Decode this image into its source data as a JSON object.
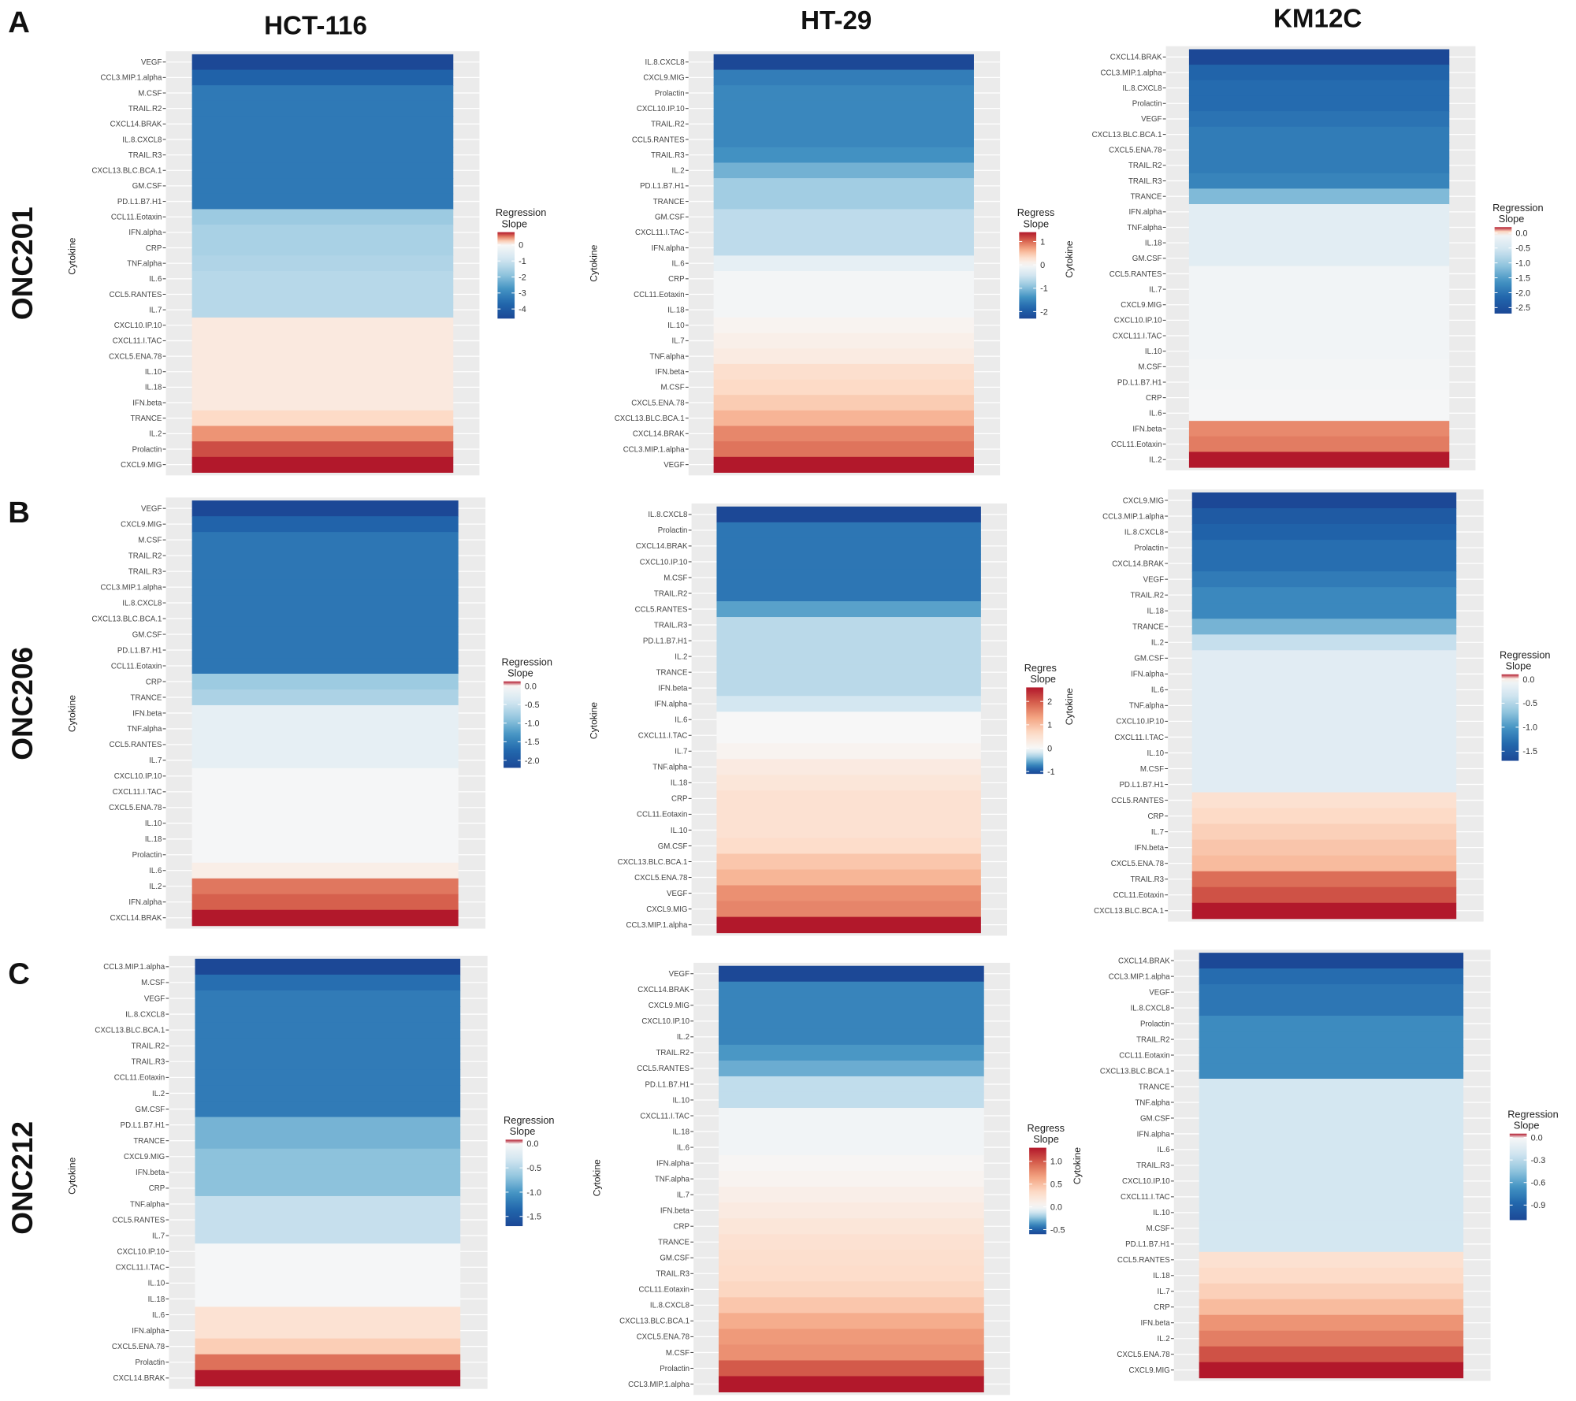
{
  "columns": [
    "HCT-116",
    "HT-29",
    "KM12C"
  ],
  "rows": [
    {
      "letter": "A",
      "drug": "ONC201"
    },
    {
      "letter": "B",
      "drug": "ONC206"
    },
    {
      "letter": "C",
      "drug": "ONC212"
    }
  ],
  "colors": {
    "neg": "#2166ac",
    "zero": "#f7f7f7",
    "pos": "#b2182b",
    "panel_bg": "#ebebeb"
  },
  "chart_data": [
    {
      "type": "heatmap",
      "row": "A",
      "cell_line": "HCT-116",
      "drug": "ONC201",
      "ylabel": "Cytokine",
      "legend_title": "Regression Slope",
      "legend_ticks": [
        0,
        -1,
        -2,
        -3,
        -4
      ],
      "legend_tick_labels": [
        "0",
        "-1",
        "-2",
        "-3",
        "-4"
      ],
      "limits": [
        -4.6,
        0.8
      ],
      "cytokines": [
        "VEGF",
        "CCL3.MIP.1.alpha",
        "M.CSF",
        "TRAIL.R2",
        "CXCL14.BRAK",
        "IL.8.CXCL8",
        "TRAIL.R3",
        "CXCL13.BLC.BCA.1",
        "GM.CSF",
        "PD.L1.B7.H1",
        "CCL11.Eotaxin",
        "IFN.alpha",
        "CRP",
        "TNF.alpha",
        "IL.6",
        "CCL5.RANTES",
        "IL.7",
        "CXCL10.IP.10",
        "CXCL11.I.TAC",
        "CXCL5.ENA.78",
        "IL.10",
        "IL.18",
        "IFN.beta",
        "TRANCE",
        "IL.2",
        "Prolactin",
        "CXCL9.MIG"
      ],
      "values": [
        -4.6,
        -3.8,
        -3.3,
        -3.3,
        -3.3,
        -3.3,
        -3.3,
        -3.3,
        -3.3,
        -3.3,
        -1.7,
        -1.5,
        -1.5,
        -1.4,
        -1.3,
        -1.3,
        -1.3,
        0.1,
        0.1,
        0.1,
        0.1,
        0.1,
        0.1,
        0.2,
        0.45,
        0.65,
        0.8
      ]
    },
    {
      "type": "heatmap",
      "row": "A",
      "cell_line": "HT-29",
      "drug": "ONC201",
      "ylabel": "Cytokine",
      "legend_title": "Regress Slope",
      "legend_ticks": [
        1,
        0,
        -1,
        -2
      ],
      "legend_tick_labels": [
        "1",
        "0",
        "-1",
        "-2"
      ],
      "limits": [
        -2.3,
        1.4
      ],
      "cytokines": [
        "IL.8.CXCL8",
        "CXCL9.MIG",
        "Prolactin",
        "CXCL10.IP.10",
        "TRAIL.R2",
        "CCL5.RANTES",
        "TRAIL.R3",
        "IL.2",
        "PD.L1.B7.H1",
        "TRANCE",
        "GM.CSF",
        "CXCL11.I.TAC",
        "IFN.alpha",
        "IL.6",
        "CRP",
        "CCL11.Eotaxin",
        "IL.18",
        "IL.10",
        "IL.7",
        "TNF.alpha",
        "IFN.beta",
        "M.CSF",
        "CXCL5.ENA.78",
        "CXCL13.BLC.BCA.1",
        "CXCL14.BRAK",
        "CCL3.MIP.1.alpha",
        "VEGF"
      ],
      "values": [
        -2.3,
        -1.6,
        -1.5,
        -1.5,
        -1.5,
        -1.5,
        -1.4,
        -1.1,
        -0.8,
        -0.8,
        -0.6,
        -0.6,
        -0.6,
        -0.2,
        -0.05,
        -0.05,
        -0.05,
        0.05,
        0.1,
        0.15,
        0.3,
        0.35,
        0.45,
        0.6,
        0.85,
        0.95,
        1.4
      ]
    },
    {
      "type": "heatmap",
      "row": "A",
      "cell_line": "KM12C",
      "drug": "ONC201",
      "ylabel": "Cytokine",
      "legend_title": "Regression Slope",
      "legend_ticks": [
        0,
        -0.5,
        -1,
        -1.5,
        -2,
        -2.5
      ],
      "legend_tick_labels": [
        "0.0",
        "-0.5",
        "-1.0",
        "-1.5",
        "-2.0",
        "-2.5"
      ],
      "limits": [
        -2.7,
        0.2
      ],
      "cytokines": [
        "CXCL14.BRAK",
        "CCL3.MIP.1.alpha",
        "IL.8.CXCL8",
        "Prolactin",
        "VEGF",
        "CXCL13.BLC.BCA.1",
        "CXCL5.ENA.78",
        "TRAIL.R2",
        "TRAIL.R3",
        "TRANCE",
        "IFN.alpha",
        "TNF.alpha",
        "IL.18",
        "GM.CSF",
        "CCL5.RANTES",
        "IL.7",
        "CXCL9.MIG",
        "CXCL10.IP.10",
        "CXCL11.I.TAC",
        "IL.10",
        "M.CSF",
        "PD.L1.B7.H1",
        "CRP",
        "IL.6",
        "IFN.beta",
        "CCL11.Eotaxin",
        "IL.2"
      ],
      "values": [
        -2.7,
        -2.2,
        -2.1,
        -2.1,
        -2.0,
        -1.9,
        -1.9,
        -1.9,
        -1.8,
        -1.2,
        -0.3,
        -0.3,
        -0.3,
        -0.3,
        -0.08,
        -0.08,
        -0.08,
        -0.08,
        -0.08,
        -0.08,
        -0.05,
        -0.05,
        -0.03,
        -0.03,
        0.12,
        0.13,
        0.2
      ]
    },
    {
      "type": "heatmap",
      "row": "B",
      "cell_line": "HCT-116",
      "drug": "ONC206",
      "ylabel": "Cytokine",
      "legend_title": "Regression Slope",
      "legend_ticks": [
        0,
        -0.5,
        -1,
        -1.5,
        -2
      ],
      "legend_tick_labels": [
        "0.0",
        "-0.5",
        "-1.0",
        "-1.5",
        "-2.0"
      ],
      "limits": [
        -2.2,
        0.12
      ],
      "cytokines": [
        "VEGF",
        "CXCL9.MIG",
        "M.CSF",
        "TRAIL.R2",
        "TRAIL.R3",
        "CCL3.MIP.1.alpha",
        "IL.8.CXCL8",
        "CXCL13.BLC.BCA.1",
        "GM.CSF",
        "PD.L1.B7.H1",
        "CCL11.Eotaxin",
        "CRP",
        "TRANCE",
        "IFN.beta",
        "TNF.alpha",
        "CCL5.RANTES",
        "IL.7",
        "CXCL10.IP.10",
        "CXCL11.I.TAC",
        "CXCL5.ENA.78",
        "IL.10",
        "IL.18",
        "Prolactin",
        "IL.6",
        "IL.2",
        "IFN.alpha",
        "CXCL14.BRAK"
      ],
      "values": [
        -2.2,
        -1.8,
        -1.6,
        -1.6,
        -1.6,
        -1.6,
        -1.6,
        -1.6,
        -1.6,
        -1.6,
        -1.6,
        -0.8,
        -0.7,
        -0.2,
        -0.2,
        -0.2,
        -0.2,
        -0.02,
        -0.02,
        -0.02,
        -0.02,
        -0.02,
        -0.02,
        0.01,
        0.08,
        0.09,
        0.12
      ]
    },
    {
      "type": "heatmap",
      "row": "B",
      "cell_line": "HT-29",
      "drug": "ONC206",
      "ylabel": "Cytokine",
      "legend_title": "Regres Slope",
      "legend_ticks": [
        2,
        1,
        0,
        -1
      ],
      "legend_tick_labels": [
        "2",
        "1",
        "0",
        "-1"
      ],
      "limits": [
        -1.1,
        2.6
      ],
      "cytokines": [
        "IL.8.CXCL8",
        "Prolactin",
        "CXCL14.BRAK",
        "CXCL10.IP.10",
        "M.CSF",
        "TRAIL.R2",
        "CCL5.RANTES",
        "TRAIL.R3",
        "PD.L1.B7.H1",
        "IL.2",
        "TRANCE",
        "IFN.beta",
        "IFN.alpha",
        "IL.6",
        "CXCL11.I.TAC",
        "IL.7",
        "TNF.alpha",
        "IL.18",
        "CRP",
        "CCL11.Eotaxin",
        "IL.10",
        "GM.CSF",
        "CXCL13.BLC.BCA.1",
        "CXCL5.ENA.78",
        "VEGF",
        "CXCL9.MIG",
        "CCL3.MIP.1.alpha"
      ],
      "values": [
        -1.1,
        -0.8,
        -0.8,
        -0.8,
        -0.8,
        -0.8,
        -0.6,
        -0.3,
        -0.3,
        -0.3,
        -0.3,
        -0.3,
        -0.2,
        0.0,
        0.0,
        0.1,
        0.3,
        0.4,
        0.5,
        0.5,
        0.5,
        0.6,
        0.9,
        1.1,
        1.5,
        1.6,
        2.6
      ]
    },
    {
      "type": "heatmap",
      "row": "B",
      "cell_line": "KM12C",
      "drug": "ONC206",
      "ylabel": "Cytokine",
      "legend_title": "Regression Slope",
      "legend_ticks": [
        0,
        -0.5,
        -1,
        -1.5
      ],
      "legend_tick_labels": [
        "0.0",
        "-0.5",
        "-1.0",
        "-1.5"
      ],
      "limits": [
        -1.7,
        0.1
      ],
      "cytokines": [
        "CXCL9.MIG",
        "CCL3.MIP.1.alpha",
        "IL.8.CXCL8",
        "Prolactin",
        "CXCL14.BRAK",
        "VEGF",
        "TRAIL.R2",
        "IL.18",
        "TRANCE",
        "IL.2",
        "GM.CSF",
        "IFN.alpha",
        "IL.6",
        "TNF.alpha",
        "CXCL10.IP.10",
        "CXCL11.I.TAC",
        "IL.10",
        "M.CSF",
        "PD.L1.B7.H1",
        "CCL5.RANTES",
        "CRP",
        "IL.7",
        "IFN.beta",
        "CXCL5.ENA.78",
        "TRAIL.R3",
        "CCL11.Eotaxin",
        "CXCL13.BLC.BCA.1"
      ],
      "values": [
        -1.7,
        -1.5,
        -1.4,
        -1.3,
        -1.3,
        -1.2,
        -1.1,
        -1.1,
        -0.8,
        -0.4,
        -0.2,
        -0.2,
        -0.2,
        -0.2,
        -0.2,
        -0.2,
        -0.2,
        -0.2,
        -0.2,
        0.02,
        0.025,
        0.03,
        0.035,
        0.04,
        0.07,
        0.08,
        0.1
      ]
    },
    {
      "type": "heatmap",
      "row": "C",
      "cell_line": "HCT-116",
      "drug": "ONC212",
      "ylabel": "Cytokine",
      "legend_title": "Regression Slope",
      "legend_ticks": [
        0,
        -0.5,
        -1,
        -1.5
      ],
      "legend_tick_labels": [
        "0.0",
        "-0.5",
        "-1.0",
        "-1.5"
      ],
      "limits": [
        -1.7,
        0.08
      ],
      "cytokines": [
        "CCL3.MIP.1.alpha",
        "M.CSF",
        "VEGF",
        "IL.8.CXCL8",
        "CXCL13.BLC.BCA.1",
        "TRAIL.R2",
        "TRAIL.R3",
        "CCL11.Eotaxin",
        "IL.2",
        "GM.CSF",
        "PD.L1.B7.H1",
        "TRANCE",
        "CXCL9.MIG",
        "IFN.beta",
        "CRP",
        "TNF.alpha",
        "CCL5.RANTES",
        "IL.7",
        "CXCL10.IP.10",
        "CXCL11.I.TAC",
        "IL.10",
        "IL.18",
        "IL.6",
        "IFN.alpha",
        "CXCL5.ENA.78",
        "Prolactin",
        "CXCL14.BRAK"
      ],
      "values": [
        -1.7,
        -1.3,
        -1.2,
        -1.2,
        -1.2,
        -1.2,
        -1.2,
        -1.2,
        -1.2,
        -1.2,
        -0.8,
        -0.8,
        -0.7,
        -0.7,
        -0.7,
        -0.4,
        -0.4,
        -0.4,
        -0.02,
        -0.02,
        -0.02,
        -0.02,
        0.015,
        0.015,
        0.025,
        0.055,
        0.08
      ]
    },
    {
      "type": "heatmap",
      "row": "C",
      "cell_line": "HT-29",
      "drug": "ONC212",
      "ylabel": "Cytokine",
      "legend_title": "Regress Slope",
      "legend_ticks": [
        1,
        0.5,
        0,
        -0.5
      ],
      "legend_tick_labels": [
        "1.0",
        "0.5",
        "0.0",
        "-0.5"
      ],
      "limits": [
        -0.6,
        1.3
      ],
      "cytokines": [
        "VEGF",
        "CXCL14.BRAK",
        "CXCL9.MIG",
        "CXCL10.IP.10",
        "IL.2",
        "TRAIL.R2",
        "CCL5.RANTES",
        "PD.L1.B7.H1",
        "IL.10",
        "CXCL11.I.TAC",
        "IL.18",
        "IL.6",
        "IFN.alpha",
        "TNF.alpha",
        "IL.7",
        "IFN.beta",
        "CRP",
        "TRANCE",
        "GM.CSF",
        "TRAIL.R3",
        "CCL11.Eotaxin",
        "IL.8.CXCL8",
        "CXCL13.BLC.BCA.1",
        "CXCL5.ENA.78",
        "M.CSF",
        "Prolactin",
        "CCL3.MIP.1.alpha"
      ],
      "values": [
        -0.6,
        -0.4,
        -0.4,
        -0.4,
        -0.4,
        -0.35,
        -0.3,
        -0.15,
        -0.15,
        -0.02,
        -0.02,
        -0.02,
        0.02,
        0.05,
        0.1,
        0.15,
        0.2,
        0.25,
        0.28,
        0.3,
        0.35,
        0.45,
        0.6,
        0.7,
        0.75,
        1.0,
        1.3
      ]
    },
    {
      "type": "heatmap",
      "row": "C",
      "cell_line": "KM12C",
      "drug": "ONC212",
      "ylabel": "Cytokine",
      "legend_title": "Regression Slope",
      "legend_ticks": [
        0,
        -0.3,
        -0.6,
        -0.9
      ],
      "legend_tick_labels": [
        "0.0",
        "-0.3",
        "-0.6",
        "-0.9"
      ],
      "limits": [
        -1.1,
        0.05
      ],
      "cytokines": [
        "CXCL14.BRAK",
        "CCL3.MIP.1.alpha",
        "VEGF",
        "IL.8.CXCL8",
        "Prolactin",
        "TRAIL.R2",
        "CCL11.Eotaxin",
        "CXCL13.BLC.BCA.1",
        "TRANCE",
        "TNF.alpha",
        "GM.CSF",
        "IFN.alpha",
        "IL.6",
        "TRAIL.R3",
        "CXCL10.IP.10",
        "CXCL11.I.TAC",
        "IL.10",
        "M.CSF",
        "PD.L1.B7.H1",
        "CCL5.RANTES",
        "IL.18",
        "IL.7",
        "CRP",
        "IFN.beta",
        "IL.2",
        "CXCL5.ENA.78",
        "CXCL9.MIG"
      ],
      "values": [
        -1.1,
        -0.85,
        -0.8,
        -0.8,
        -0.7,
        -0.7,
        -0.7,
        -0.7,
        -0.2,
        -0.2,
        -0.2,
        -0.2,
        -0.2,
        -0.2,
        -0.2,
        -0.2,
        -0.2,
        -0.2,
        -0.2,
        0.01,
        0.012,
        0.015,
        0.02,
        0.028,
        0.032,
        0.04,
        0.05
      ]
    }
  ]
}
